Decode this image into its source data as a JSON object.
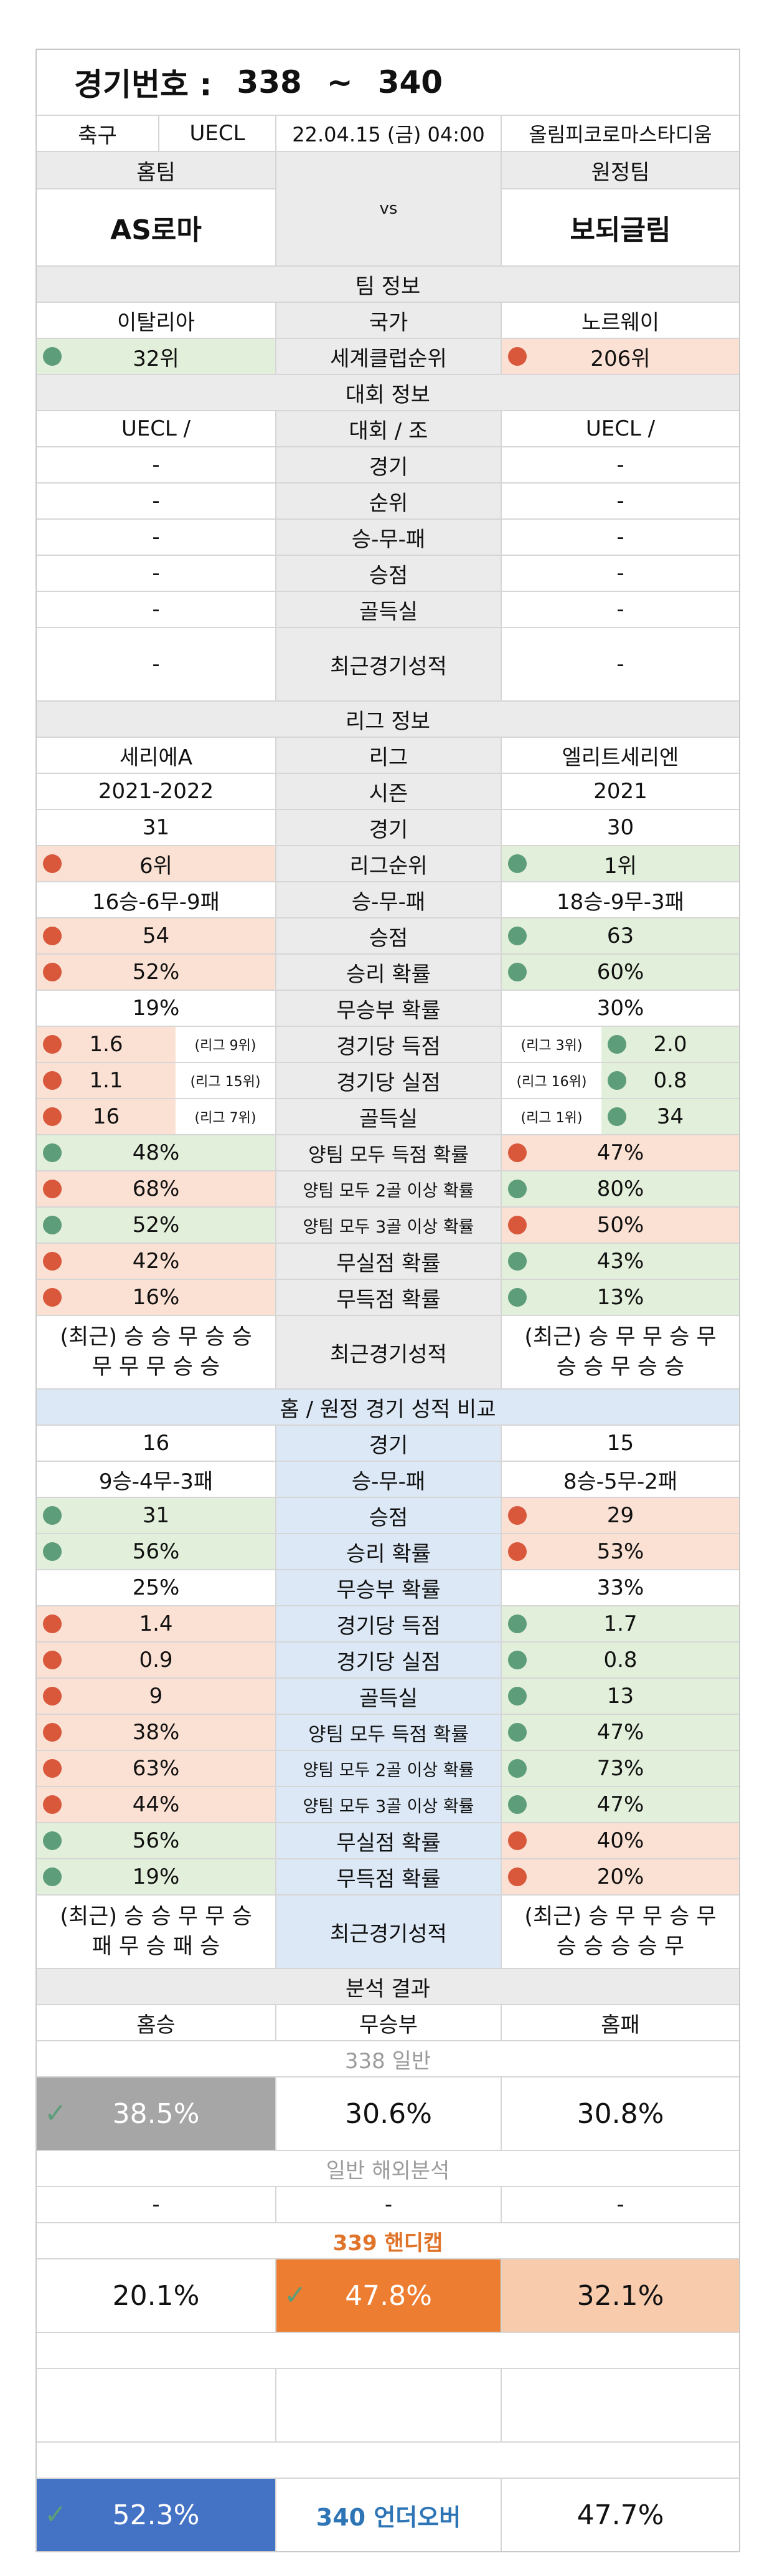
{
  "header": {
    "label": "경기번호 :",
    "from": "338",
    "tilde": "~",
    "to": "340"
  },
  "match": {
    "sport": "축구",
    "league": "UECL",
    "datetime": "22.04.15 (금) 04:00",
    "venue": "올림피코로마스타디움"
  },
  "teams": {
    "home_label": "홈팀",
    "away_label": "원정팀",
    "home": "AS로마",
    "vs": "vs",
    "away": "보되글림"
  },
  "team_info": {
    "title": "팀 정보",
    "country": {
      "home": "이탈리아",
      "label": "국가",
      "away": "노르웨이"
    },
    "rank": {
      "home": "32위",
      "label": "세계클럽순위",
      "away": "206위"
    }
  },
  "cup_info": {
    "title": "대회 정보",
    "rows": [
      {
        "home": "UECL /",
        "label": "대회 / 조",
        "away": "UECL /"
      },
      {
        "home": "-",
        "label": "경기",
        "away": "-"
      },
      {
        "home": "-",
        "label": "순위",
        "away": "-"
      },
      {
        "home": "-",
        "label": "승-무-패",
        "away": "-"
      },
      {
        "home": "-",
        "label": "승점",
        "away": "-"
      },
      {
        "home": "-",
        "label": "골득실",
        "away": "-"
      },
      {
        "home": "-",
        "label": "최근경기성적",
        "away": "-"
      }
    ]
  },
  "league_info": {
    "title": "리그 정보",
    "league": {
      "home": "세리에A",
      "label": "리그",
      "away": "엘리트세리엔"
    },
    "season": {
      "home": "2021-2022",
      "label": "시즌",
      "away": "2021"
    },
    "games": {
      "home": "31",
      "label": "경기",
      "away": "30"
    },
    "rank": {
      "home": "6위",
      "label": "리그순위",
      "away": "1위"
    },
    "wdl": {
      "home": "16승-6무-9패",
      "label": "승-무-패",
      "away": "18승-9무-3패"
    },
    "points": {
      "home": "54",
      "label": "승점",
      "away": "63"
    },
    "winrate": {
      "home": "52%",
      "label": "승리 확률",
      "away": "60%"
    },
    "drawrate": {
      "home": "19%",
      "label": "무승부 확률",
      "away": "30%"
    },
    "scored": {
      "home": "1.6",
      "home_note": "(리그 9위)",
      "label": "경기당 득점",
      "away_note": "(리그 3위)",
      "away": "2.0"
    },
    "conceded": {
      "home": "1.1",
      "home_note": "(리그 15위)",
      "label": "경기당 실점",
      "away_note": "(리그 16위)",
      "away": "0.8"
    },
    "goaldiff": {
      "home": "16",
      "home_note": "(리그 7위)",
      "label": "골득실",
      "away_note": "(리그 1위)",
      "away": "34"
    },
    "btts": {
      "home": "48%",
      "label": "양팀 모두 득점 확률",
      "away": "47%"
    },
    "btts2": {
      "home": "68%",
      "label": "양팀 모두 2골 이상 확률",
      "away": "80%"
    },
    "btts3": {
      "home": "52%",
      "label": "양팀 모두 3골 이상 확률",
      "away": "50%"
    },
    "cleansheet": {
      "home": "42%",
      "label": "무실점 확률",
      "away": "43%"
    },
    "noscore": {
      "home": "16%",
      "label": "무득점 확률",
      "away": "13%"
    },
    "form": {
      "home1": "(최근) 승 승 무 승 승",
      "home2": "무 무 무 승 승",
      "label": "최근경기성적",
      "away1": "(최근) 승 무 무 승 무",
      "away2": "승 승 무 승 승"
    }
  },
  "homeaway": {
    "title": "홈 / 원정 경기 성적 비교",
    "games": {
      "home": "16",
      "label": "경기",
      "away": "15"
    },
    "wdl": {
      "home": "9승-4무-3패",
      "label": "승-무-패",
      "away": "8승-5무-2패"
    },
    "points": {
      "home": "31",
      "label": "승점",
      "away": "29"
    },
    "winrate": {
      "home": "56%",
      "label": "승리 확률",
      "away": "53%"
    },
    "drawrate": {
      "home": "25%",
      "label": "무승부 확률",
      "away": "33%"
    },
    "scored": {
      "home": "1.4",
      "label": "경기당 득점",
      "away": "1.7"
    },
    "conceded": {
      "home": "0.9",
      "label": "경기당 실점",
      "away": "0.8"
    },
    "goaldiff": {
      "home": "9",
      "label": "골득실",
      "away": "13"
    },
    "btts": {
      "home": "38%",
      "label": "양팀 모두 득점 확률",
      "away": "47%"
    },
    "btts2": {
      "home": "63%",
      "label": "양팀 모두 2골 이상 확률",
      "away": "73%"
    },
    "btts3": {
      "home": "44%",
      "label": "양팀 모두 3골 이상 확률",
      "away": "47%"
    },
    "cleansheet": {
      "home": "56%",
      "label": "무실점 확률",
      "away": "40%"
    },
    "noscore": {
      "home": "19%",
      "label": "무득점 확률",
      "away": "20%"
    },
    "form": {
      "home1": "(최근) 승 승 무 무 승",
      "home2": "패 무 승 패 승",
      "label": "최근경기성적",
      "away1": "(최근) 승 무 무 승 무",
      "away2": "승 승 승 승 무"
    }
  },
  "analysis": {
    "title": "분석 결과",
    "cols": {
      "home": "홈승",
      "draw": "무승부",
      "away": "홈패"
    },
    "general": {
      "title": "338 일반",
      "home": "38.5%",
      "draw": "30.6%",
      "away": "30.8%"
    },
    "overseas": {
      "title": "일반 해외분석",
      "home": "-",
      "draw": "-",
      "away": "-"
    },
    "handicap": {
      "title": "339 핸디캡",
      "home": "20.1%",
      "draw": "47.8%",
      "away": "32.1%"
    },
    "underover": {
      "under": "52.3%",
      "label": "340 언더오버",
      "over": "47.7%"
    }
  },
  "colors": {
    "green_dot": "#5d9d7a",
    "red_dot": "#d9583b",
    "green_bg": "#e2efda",
    "orange_bg": "#fbe1d4",
    "accent_orange": "#ed7d31",
    "accent_blue": "#4472c4"
  }
}
